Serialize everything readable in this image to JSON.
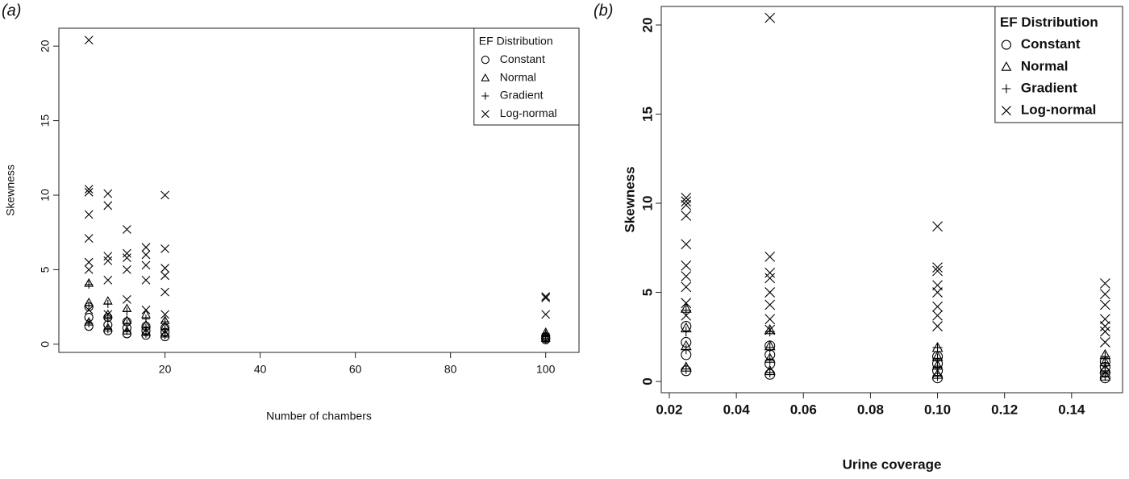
{
  "chart_data": [
    {
      "type": "scatter",
      "panel_label": "(a)",
      "x_label": "Number of chambers",
      "y_label": "Skewness",
      "legend_title": "EF Distribution",
      "legend": "top right",
      "xlim": [
        -2.3,
        107
      ],
      "ylim": [
        -0.55,
        21.2
      ],
      "xticks": [
        20,
        40,
        60,
        80,
        100
      ],
      "yticks": [
        0,
        5,
        10,
        15,
        20
      ],
      "series": [
        {
          "name": "Constant",
          "marker": "circle",
          "color": "#000000",
          "x": [
            4,
            4,
            4,
            8,
            8,
            8,
            12,
            12,
            12,
            16,
            16,
            16,
            20,
            20,
            20,
            100,
            100,
            100
          ],
          "values": [
            1.2,
            1.8,
            2.5,
            0.9,
            1.3,
            1.8,
            0.7,
            1.1,
            1.5,
            0.6,
            0.9,
            1.2,
            0.5,
            0.8,
            1.1,
            0.3,
            0.4,
            0.5
          ]
        },
        {
          "name": "Normal",
          "marker": "triangle",
          "color": "#000000",
          "x": [
            4,
            4,
            4,
            8,
            8,
            8,
            12,
            12,
            12,
            16,
            16,
            16,
            20,
            20,
            20,
            100,
            100,
            100
          ],
          "values": [
            1.5,
            2.8,
            4.1,
            1.1,
            2.0,
            2.9,
            0.9,
            1.6,
            2.4,
            0.8,
            1.3,
            2.0,
            0.7,
            1.2,
            1.6,
            0.4,
            0.6,
            0.8
          ]
        },
        {
          "name": "Gradient",
          "marker": "plus",
          "color": "#000000",
          "x": [
            4,
            4,
            4,
            8,
            8,
            8,
            12,
            12,
            12,
            16,
            16,
            16,
            20,
            20,
            20,
            100,
            100,
            100
          ],
          "values": [
            1.4,
            2.6,
            4.0,
            1.0,
            1.7,
            2.7,
            0.9,
            1.4,
            2.2,
            0.7,
            1.1,
            1.7,
            0.6,
            1.0,
            1.5,
            0.3,
            0.5,
            0.7
          ]
        },
        {
          "name": "Log-normal",
          "marker": "cross",
          "color": "#000000",
          "x": [
            4,
            4,
            4,
            4,
            4,
            4,
            4,
            4,
            8,
            8,
            8,
            8,
            8,
            8,
            12,
            12,
            12,
            12,
            12,
            16,
            16,
            16,
            16,
            16,
            20,
            20,
            20,
            20,
            20,
            20,
            100,
            100,
            100
          ],
          "values": [
            20.4,
            10.4,
            10.2,
            8.7,
            7.1,
            5.5,
            5.0,
            2.3,
            10.1,
            9.3,
            5.9,
            5.6,
            4.3,
            2.0,
            7.7,
            6.1,
            5.8,
            5.0,
            3.0,
            6.5,
            6.0,
            5.3,
            4.3,
            2.3,
            10.0,
            6.4,
            5.1,
            4.6,
            3.5,
            2.0,
            3.2,
            3.1,
            2.0
          ]
        }
      ]
    },
    {
      "type": "scatter",
      "panel_label": "(b)",
      "x_label": "Urine coverage",
      "y_label": "Skewness",
      "legend_title": "EF Distribution",
      "legend": "top right",
      "xlim": [
        0.0176,
        0.1552
      ],
      "ylim": [
        -0.63,
        21.04
      ],
      "xticks": [
        0.02,
        0.04,
        0.06,
        0.08,
        {
          "value": 0.1,
          "label": "0.10"
        },
        0.12,
        0.14
      ],
      "yticks": [
        0,
        5,
        10,
        15,
        20
      ],
      "series": [
        {
          "name": "Constant",
          "marker": "circle",
          "color": "#000000",
          "x": [
            0.025,
            0.025,
            0.025,
            0.025,
            0.05,
            0.05,
            0.05,
            0.05,
            0.1,
            0.1,
            0.1,
            0.1,
            0.15,
            0.15,
            0.15,
            0.15
          ],
          "values": [
            0.6,
            1.5,
            2.2,
            3.1,
            0.4,
            1.0,
            1.5,
            2.0,
            0.2,
            0.6,
            1.0,
            1.4,
            0.2,
            0.5,
            0.8,
            1.1
          ]
        },
        {
          "name": "Normal",
          "marker": "triangle",
          "color": "#000000",
          "x": [
            0.025,
            0.025,
            0.025,
            0.025,
            0.05,
            0.05,
            0.05,
            0.05,
            0.1,
            0.1,
            0.1,
            0.1,
            0.15,
            0.15,
            0.15,
            0.15
          ],
          "values": [
            0.8,
            2.0,
            3.0,
            4.1,
            0.6,
            1.3,
            2.0,
            2.9,
            0.4,
            0.9,
            1.4,
            1.9,
            0.3,
            0.7,
            1.1,
            1.5
          ]
        },
        {
          "name": "Gradient",
          "marker": "plus",
          "color": "#000000",
          "x": [
            0.025,
            0.025,
            0.025,
            0.025,
            0.05,
            0.05,
            0.05,
            0.05,
            0.1,
            0.1,
            0.1,
            0.1,
            0.15,
            0.15,
            0.15,
            0.15
          ],
          "values": [
            0.7,
            1.8,
            2.8,
            4.0,
            0.5,
            1.2,
            1.9,
            2.8,
            0.3,
            0.8,
            1.3,
            1.9,
            0.3,
            0.6,
            1.0,
            1.4
          ]
        },
        {
          "name": "Log-normal",
          "marker": "cross",
          "color": "#000000",
          "x": [
            0.025,
            0.025,
            0.025,
            0.025,
            0.025,
            0.025,
            0.025,
            0.025,
            0.025,
            0.025,
            0.05,
            0.05,
            0.05,
            0.05,
            0.05,
            0.05,
            0.05,
            0.05,
            0.1,
            0.1,
            0.1,
            0.1,
            0.1,
            0.1,
            0.1,
            0.1,
            0.15,
            0.15,
            0.15,
            0.15,
            0.15,
            0.15,
            0.15
          ],
          "values": [
            10.3,
            10.1,
            9.9,
            9.3,
            7.7,
            6.5,
            5.9,
            5.3,
            4.4,
            3.7,
            20.4,
            7.0,
            6.1,
            5.8,
            5.0,
            4.3,
            3.5,
            2.9,
            8.7,
            6.4,
            6.2,
            5.4,
            5.0,
            4.2,
            3.7,
            3.1,
            5.5,
            4.9,
            4.3,
            3.5,
            3.1,
            2.8,
            2.2
          ]
        }
      ]
    }
  ]
}
